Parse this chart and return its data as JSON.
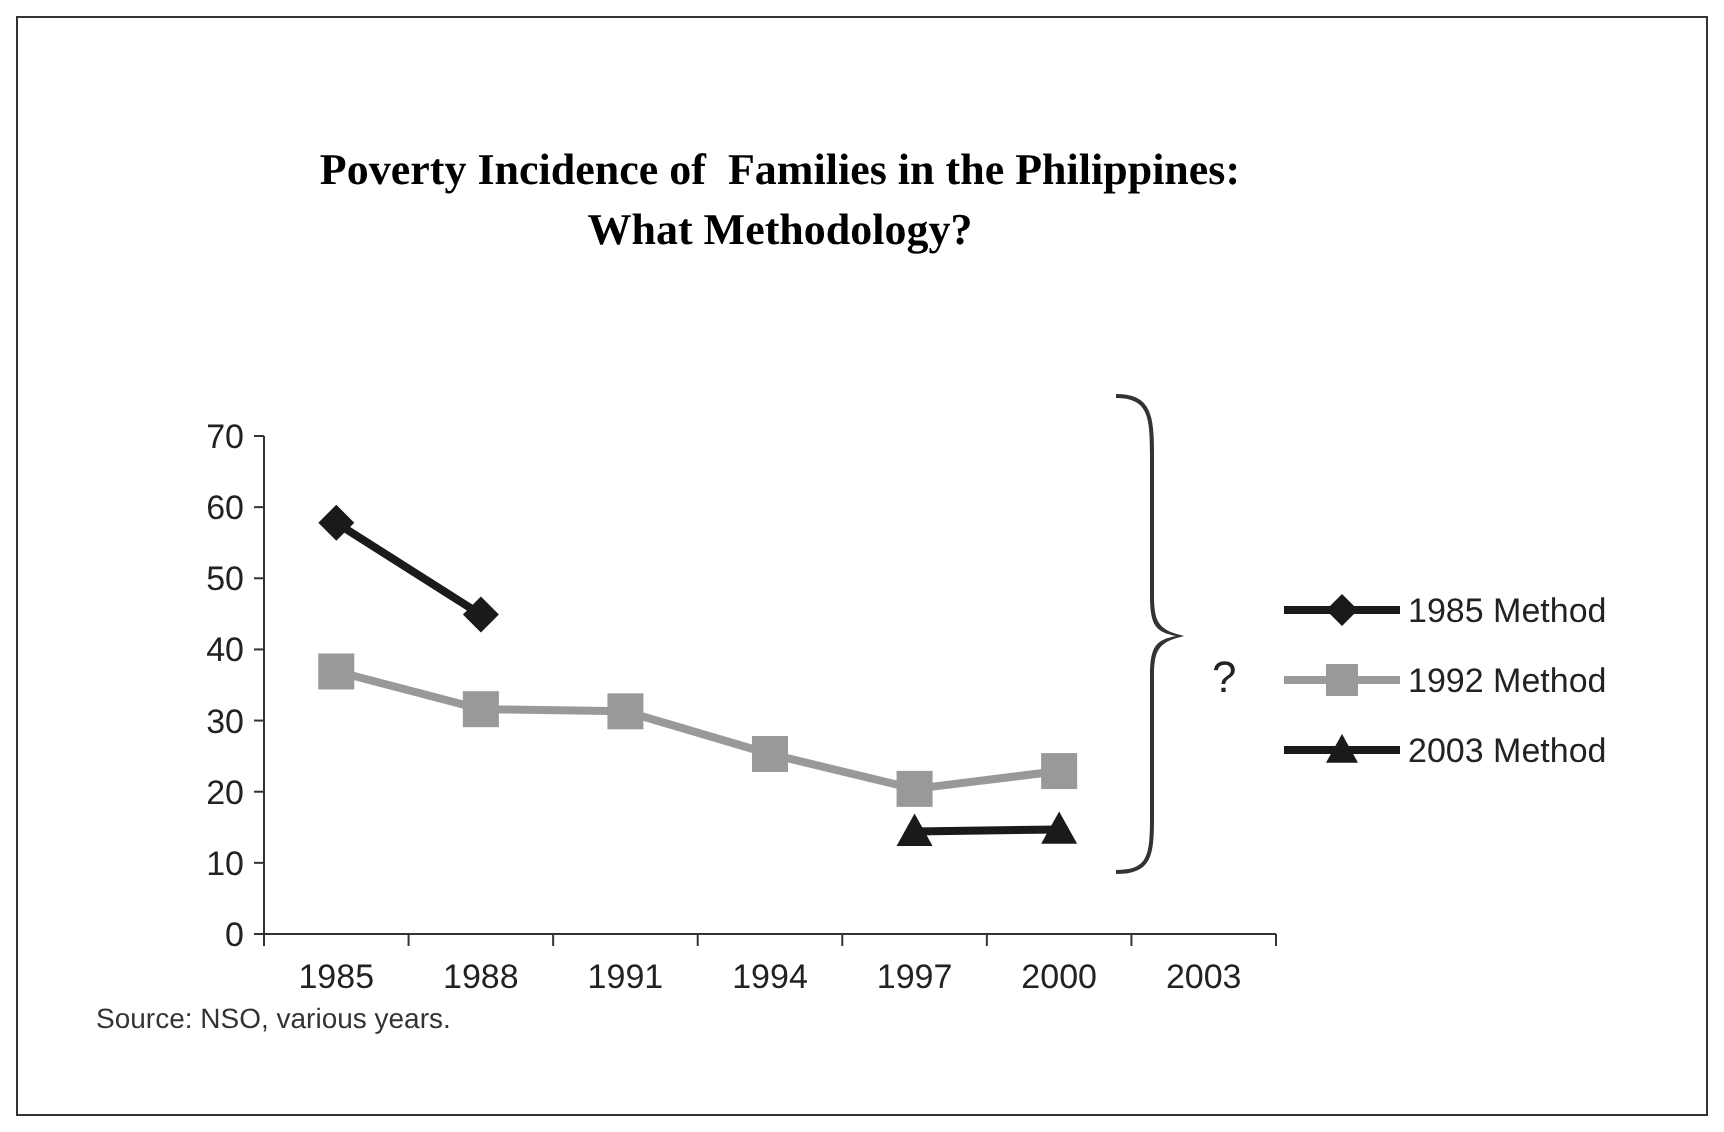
{
  "chart_data": {
    "type": "line",
    "title": "Poverty Incidence of  Families in the Philippines:\nWhat Methodology?",
    "categories": [
      "1985",
      "1988",
      "1991",
      "1994",
      "1997",
      "2000",
      "2003"
    ],
    "series": [
      {
        "name": "1985 Method",
        "color": "#1a1a1a",
        "marker": "diamond",
        "values": [
          57.8,
          44.9,
          null,
          null,
          null,
          null,
          null
        ]
      },
      {
        "name": "1992 Method",
        "color": "#999999",
        "marker": "square",
        "values": [
          36.9,
          31.6,
          31.3,
          25.3,
          20.4,
          22.9,
          null
        ]
      },
      {
        "name": "2003 Method",
        "color": "#1a1a1a",
        "marker": "triangle",
        "values": [
          null,
          null,
          null,
          null,
          14.4,
          14.7,
          null
        ]
      }
    ],
    "ylim": [
      0,
      70
    ],
    "yticks": [
      0,
      10,
      20,
      30,
      40,
      50,
      60,
      70
    ],
    "grid": false,
    "legend": "right",
    "annotations": [
      "?",
      "Source: NSO, various years."
    ]
  }
}
